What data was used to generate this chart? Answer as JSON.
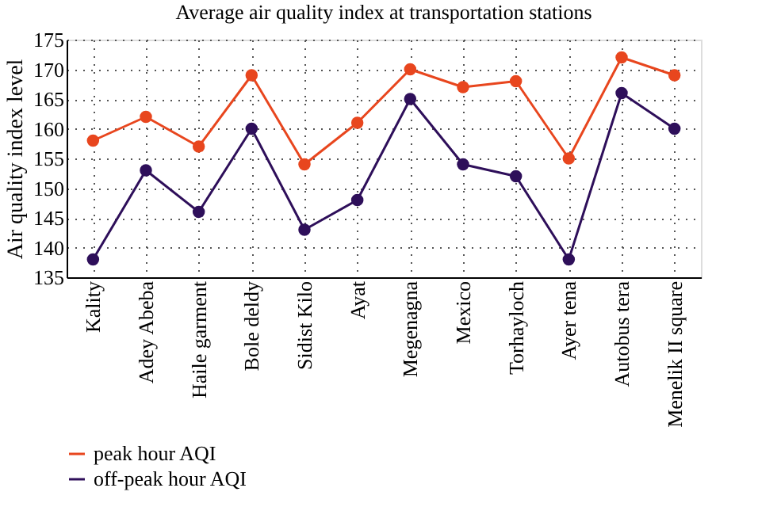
{
  "chart_data": {
    "type": "line",
    "title": "Average air quality index at transportation stations",
    "ylabel": "Air quality index level",
    "categories": [
      "Kality",
      "Adey Abeba",
      "Haile garment",
      "Bole deldy",
      "Sidist Kilo",
      "Ayat",
      "Megenagna",
      "Mexico",
      "Torhayloch",
      "Ayer tena",
      "Autobus tera",
      "Menelik II square"
    ],
    "series": [
      {
        "name": "peak hour AQI",
        "color": "#e8461e",
        "values": [
          158,
          162,
          157,
          169,
          154,
          161,
          170,
          167,
          168,
          155,
          172,
          169
        ]
      },
      {
        "name": "off-peak hour AQI",
        "color": "#2e0f5a",
        "values": [
          138,
          153,
          146,
          160,
          143,
          148,
          165,
          154,
          152,
          138,
          166,
          160
        ]
      }
    ],
    "ylim": [
      135,
      175
    ],
    "yticks": [
      135,
      140,
      145,
      150,
      155,
      160,
      165,
      170,
      175
    ],
    "grid": true,
    "legend": "bottom left",
    "marker": "circle",
    "line_style": "solid"
  }
}
